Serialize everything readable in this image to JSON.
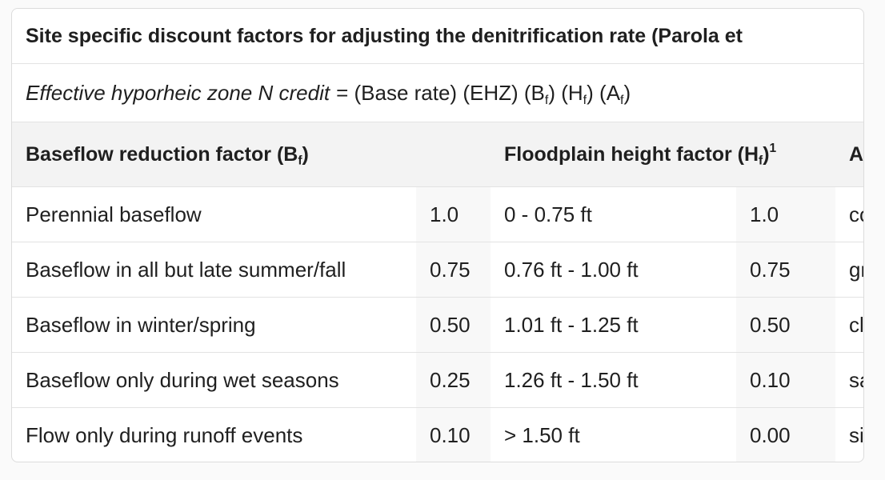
{
  "title": "Site specific discount factors for adjusting the denitrification rate (Parola et",
  "formula": {
    "label": "Effective hyporheic zone N credit",
    "parts": [
      "= (Base rate) (EHZ) (B",
      "f",
      ") (H",
      "f",
      ") (A",
      "f",
      ")"
    ]
  },
  "table": {
    "header": [
      {
        "text": "Baseflow reduction factor (B",
        "sub": "f",
        "tail": ")"
      },
      {
        "text": "Floodplain height factor (H",
        "sub": "f",
        "tail": ")",
        "sup": "1"
      },
      {
        "text": "A"
      }
    ],
    "rows": [
      [
        "Perennial baseflow",
        "1.0",
        "0 - 0.75 ft",
        "1.0",
        "co"
      ],
      [
        "Baseflow in all but late summer/fall",
        "0.75",
        "0.76 ft - 1.00 ft",
        "0.75",
        "gr"
      ],
      [
        "Baseflow in winter/spring",
        "0.50",
        "1.01 ft - 1.25 ft",
        "0.50",
        "cl"
      ],
      [
        "Baseflow only during wet seasons",
        "0.25",
        "1.26 ft - 1.50 ft",
        "0.10",
        "sa"
      ],
      [
        "Flow only during runoff events",
        "0.10",
        "> 1.50 ft",
        "0.00",
        "si"
      ]
    ]
  }
}
